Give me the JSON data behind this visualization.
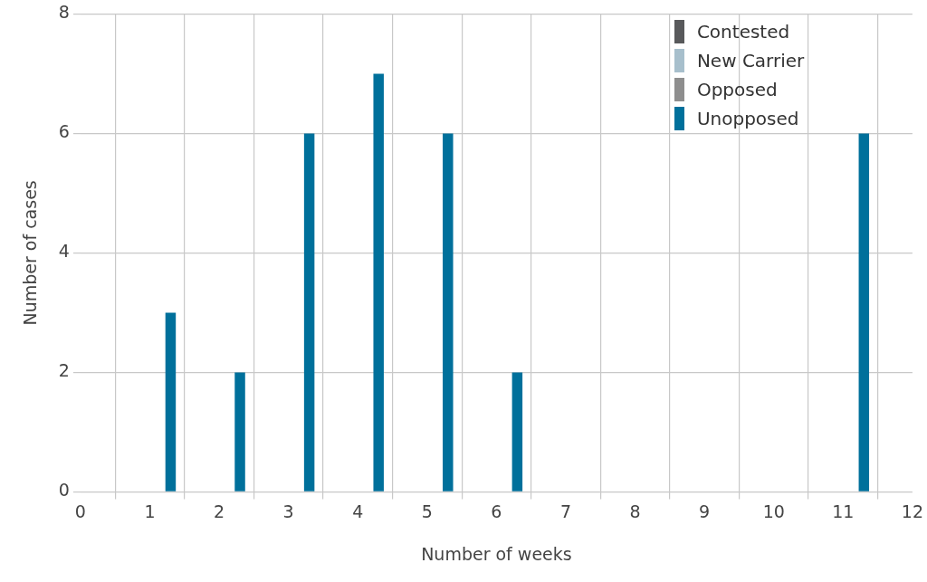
{
  "chart_data": {
    "type": "bar",
    "xlabel": "Number of weeks",
    "ylabel": "Number of cases",
    "x": [
      1,
      2,
      3,
      4,
      5,
      6,
      11
    ],
    "series": [
      {
        "name": "Contested",
        "color": "#58595b",
        "values": [
          0,
          0,
          0,
          0,
          0,
          0,
          0
        ]
      },
      {
        "name": "New Carrier",
        "color": "#a7bfcc",
        "values": [
          0,
          0,
          0,
          0,
          0,
          0,
          0
        ]
      },
      {
        "name": "Opposed",
        "color": "#8e8e8e",
        "values": [
          0,
          0,
          0,
          0,
          0,
          0,
          0
        ]
      },
      {
        "name": "Unopposed",
        "color": "#00709b",
        "values": [
          3,
          2,
          6,
          7,
          6,
          2,
          6
        ]
      }
    ],
    "xlim": [
      0,
      12
    ],
    "xticks": [
      0,
      1,
      2,
      3,
      4,
      5,
      6,
      7,
      8,
      9,
      10,
      11,
      12
    ],
    "ylim": [
      0,
      8
    ],
    "yticks": [
      0,
      2,
      4,
      6,
      8
    ],
    "grid": true,
    "legend": "top right"
  }
}
